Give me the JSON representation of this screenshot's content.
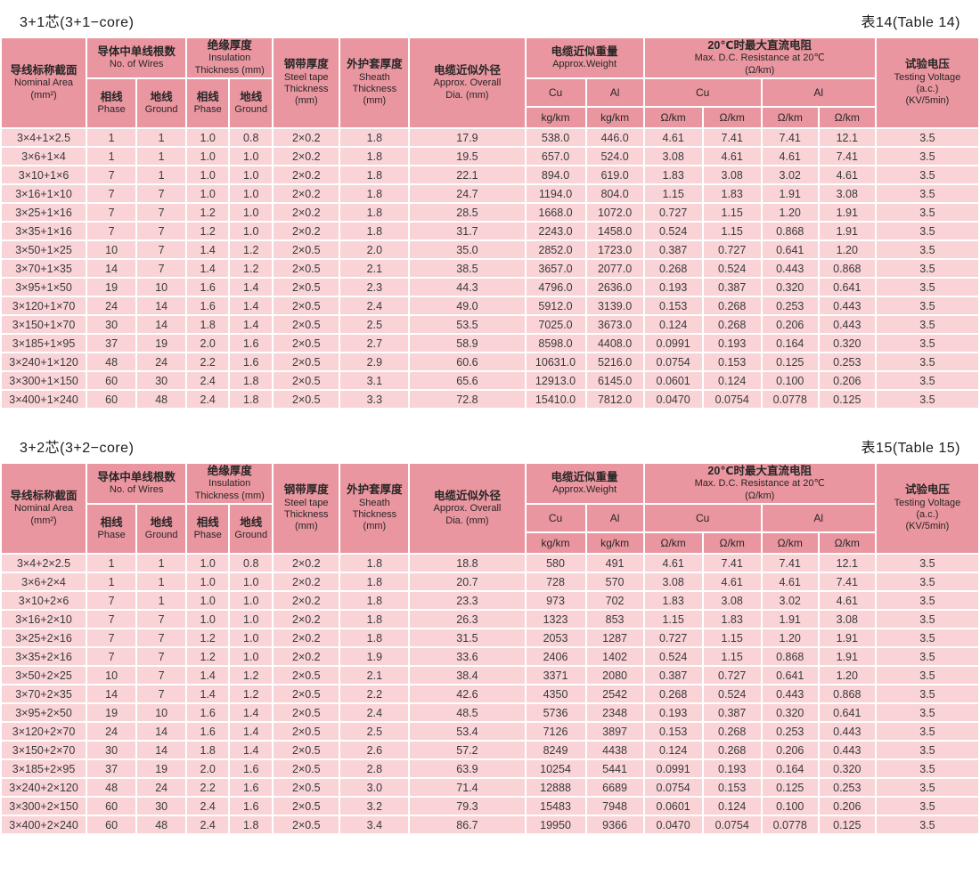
{
  "colors": {
    "header_bg": "#ea96a0",
    "row_bg": "#f9d3d6",
    "page_bg": "#ffffff",
    "text": "#323232"
  },
  "header": {
    "nominal": {
      "zh": "导线标称截面",
      "en": "Nominal Area\n(mm²)"
    },
    "wires": {
      "zh": "导体中单线根数",
      "en": "No. of Wires"
    },
    "insulation": {
      "zh": "绝缘厚度",
      "en": "Insulation\nThickness (mm)"
    },
    "phase": {
      "zh": "相线",
      "en": "Phase"
    },
    "ground": {
      "zh": "地线",
      "en": "Ground"
    },
    "steel": {
      "zh": "钢带厚度",
      "en": "Steel tape\nThickness\n(mm)"
    },
    "sheath": {
      "zh": "外护套厚度",
      "en": "Sheath\nThickness\n(mm)"
    },
    "dia": {
      "zh": "电缆近似外径",
      "en": "Approx. Overall\nDia. (mm)"
    },
    "weight": {
      "zh": "电缆近似重量",
      "en": "Approx.Weight"
    },
    "resistance": {
      "zh": "20℃时最大直流电阻",
      "en": "Max. D.C. Resistance at 20℃\n(Ω/km)"
    },
    "testing": {
      "zh": "试验电压",
      "en": "Testing Voltage\n(a.c.)\n(KV/5min)"
    },
    "cu": "Cu",
    "al": "Al",
    "kg_km": "kg/km",
    "ohm_km": "Ω/km"
  },
  "tables": [
    {
      "title": "3+1芯(3+1−core)",
      "label": "表14(Table 14)",
      "rows": [
        [
          "3×4+1×2.5",
          "1",
          "1",
          "1.0",
          "0.8",
          "2×0.2",
          "1.8",
          "17.9",
          "538.0",
          "446.0",
          "4.61",
          "7.41",
          "7.41",
          "12.1",
          "3.5"
        ],
        [
          "3×6+1×4",
          "1",
          "1",
          "1.0",
          "1.0",
          "2×0.2",
          "1.8",
          "19.5",
          "657.0",
          "524.0",
          "3.08",
          "4.61",
          "4.61",
          "7.41",
          "3.5"
        ],
        [
          "3×10+1×6",
          "7",
          "1",
          "1.0",
          "1.0",
          "2×0.2",
          "1.8",
          "22.1",
          "894.0",
          "619.0",
          "1.83",
          "3.08",
          "3.02",
          "4.61",
          "3.5"
        ],
        [
          "3×16+1×10",
          "7",
          "7",
          "1.0",
          "1.0",
          "2×0.2",
          "1.8",
          "24.7",
          "1194.0",
          "804.0",
          "1.15",
          "1.83",
          "1.91",
          "3.08",
          "3.5"
        ],
        [
          "3×25+1×16",
          "7",
          "7",
          "1.2",
          "1.0",
          "2×0.2",
          "1.8",
          "28.5",
          "1668.0",
          "1072.0",
          "0.727",
          "1.15",
          "1.20",
          "1.91",
          "3.5"
        ],
        [
          "3×35+1×16",
          "7",
          "7",
          "1.2",
          "1.0",
          "2×0.2",
          "1.8",
          "31.7",
          "2243.0",
          "1458.0",
          "0.524",
          "1.15",
          "0.868",
          "1.91",
          "3.5"
        ],
        [
          "3×50+1×25",
          "10",
          "7",
          "1.4",
          "1.2",
          "2×0.5",
          "2.0",
          "35.0",
          "2852.0",
          "1723.0",
          "0.387",
          "0.727",
          "0.641",
          "1.20",
          "3.5"
        ],
        [
          "3×70+1×35",
          "14",
          "7",
          "1.4",
          "1.2",
          "2×0.5",
          "2.1",
          "38.5",
          "3657.0",
          "2077.0",
          "0.268",
          "0.524",
          "0.443",
          "0.868",
          "3.5"
        ],
        [
          "3×95+1×50",
          "19",
          "10",
          "1.6",
          "1.4",
          "2×0.5",
          "2.3",
          "44.3",
          "4796.0",
          "2636.0",
          "0.193",
          "0.387",
          "0.320",
          "0.641",
          "3.5"
        ],
        [
          "3×120+1×70",
          "24",
          "14",
          "1.6",
          "1.4",
          "2×0.5",
          "2.4",
          "49.0",
          "5912.0",
          "3139.0",
          "0.153",
          "0.268",
          "0.253",
          "0.443",
          "3.5"
        ],
        [
          "3×150+1×70",
          "30",
          "14",
          "1.8",
          "1.4",
          "2×0.5",
          "2.5",
          "53.5",
          "7025.0",
          "3673.0",
          "0.124",
          "0.268",
          "0.206",
          "0.443",
          "3.5"
        ],
        [
          "3×185+1×95",
          "37",
          "19",
          "2.0",
          "1.6",
          "2×0.5",
          "2.7",
          "58.9",
          "8598.0",
          "4408.0",
          "0.0991",
          "0.193",
          "0.164",
          "0.320",
          "3.5"
        ],
        [
          "3×240+1×120",
          "48",
          "24",
          "2.2",
          "1.6",
          "2×0.5",
          "2.9",
          "60.6",
          "10631.0",
          "5216.0",
          "0.0754",
          "0.153",
          "0.125",
          "0.253",
          "3.5"
        ],
        [
          "3×300+1×150",
          "60",
          "30",
          "2.4",
          "1.8",
          "2×0.5",
          "3.1",
          "65.6",
          "12913.0",
          "6145.0",
          "0.0601",
          "0.124",
          "0.100",
          "0.206",
          "3.5"
        ],
        [
          "3×400+1×240",
          "60",
          "48",
          "2.4",
          "1.8",
          "2×0.5",
          "3.3",
          "72.8",
          "15410.0",
          "7812.0",
          "0.0470",
          "0.0754",
          "0.0778",
          "0.125",
          "3.5"
        ]
      ]
    },
    {
      "title": "3+2芯(3+2−core)",
      "label": "表15(Table 15)",
      "rows": [
        [
          "3×4+2×2.5",
          "1",
          "1",
          "1.0",
          "0.8",
          "2×0.2",
          "1.8",
          "18.8",
          "580",
          "491",
          "4.61",
          "7.41",
          "7.41",
          "12.1",
          "3.5"
        ],
        [
          "3×6+2×4",
          "1",
          "1",
          "1.0",
          "1.0",
          "2×0.2",
          "1.8",
          "20.7",
          "728",
          "570",
          "3.08",
          "4.61",
          "4.61",
          "7.41",
          "3.5"
        ],
        [
          "3×10+2×6",
          "7",
          "1",
          "1.0",
          "1.0",
          "2×0.2",
          "1.8",
          "23.3",
          "973",
          "702",
          "1.83",
          "3.08",
          "3.02",
          "4.61",
          "3.5"
        ],
        [
          "3×16+2×10",
          "7",
          "7",
          "1.0",
          "1.0",
          "2×0.2",
          "1.8",
          "26.3",
          "1323",
          "853",
          "1.15",
          "1.83",
          "1.91",
          "3.08",
          "3.5"
        ],
        [
          "3×25+2×16",
          "7",
          "7",
          "1.2",
          "1.0",
          "2×0.2",
          "1.8",
          "31.5",
          "2053",
          "1287",
          "0.727",
          "1.15",
          "1.20",
          "1.91",
          "3.5"
        ],
        [
          "3×35+2×16",
          "7",
          "7",
          "1.2",
          "1.0",
          "2×0.2",
          "1.9",
          "33.6",
          "2406",
          "1402",
          "0.524",
          "1.15",
          "0.868",
          "1.91",
          "3.5"
        ],
        [
          "3×50+2×25",
          "10",
          "7",
          "1.4",
          "1.2",
          "2×0.5",
          "2.1",
          "38.4",
          "3371",
          "2080",
          "0.387",
          "0.727",
          "0.641",
          "1.20",
          "3.5"
        ],
        [
          "3×70+2×35",
          "14",
          "7",
          "1.4",
          "1.2",
          "2×0.5",
          "2.2",
          "42.6",
          "4350",
          "2542",
          "0.268",
          "0.524",
          "0.443",
          "0.868",
          "3.5"
        ],
        [
          "3×95+2×50",
          "19",
          "10",
          "1.6",
          "1.4",
          "2×0.5",
          "2.4",
          "48.5",
          "5736",
          "2348",
          "0.193",
          "0.387",
          "0.320",
          "0.641",
          "3.5"
        ],
        [
          "3×120+2×70",
          "24",
          "14",
          "1.6",
          "1.4",
          "2×0.5",
          "2.5",
          "53.4",
          "7126",
          "3897",
          "0.153",
          "0.268",
          "0.253",
          "0.443",
          "3.5"
        ],
        [
          "3×150+2×70",
          "30",
          "14",
          "1.8",
          "1.4",
          "2×0.5",
          "2.6",
          "57.2",
          "8249",
          "4438",
          "0.124",
          "0.268",
          "0.206",
          "0.443",
          "3.5"
        ],
        [
          "3×185+2×95",
          "37",
          "19",
          "2.0",
          "1.6",
          "2×0.5",
          "2.8",
          "63.9",
          "10254",
          "5441",
          "0.0991",
          "0.193",
          "0.164",
          "0.320",
          "3.5"
        ],
        [
          "3×240+2×120",
          "48",
          "24",
          "2.2",
          "1.6",
          "2×0.5",
          "3.0",
          "71.4",
          "12888",
          "6689",
          "0.0754",
          "0.153",
          "0.125",
          "0.253",
          "3.5"
        ],
        [
          "3×300+2×150",
          "60",
          "30",
          "2.4",
          "1.6",
          "2×0.5",
          "3.2",
          "79.3",
          "15483",
          "7948",
          "0.0601",
          "0.124",
          "0.100",
          "0.206",
          "3.5"
        ],
        [
          "3×400+2×240",
          "60",
          "48",
          "2.4",
          "1.8",
          "2×0.5",
          "3.4",
          "86.7",
          "19950",
          "9366",
          "0.0470",
          "0.0754",
          "0.0778",
          "0.125",
          "3.5"
        ]
      ]
    }
  ]
}
